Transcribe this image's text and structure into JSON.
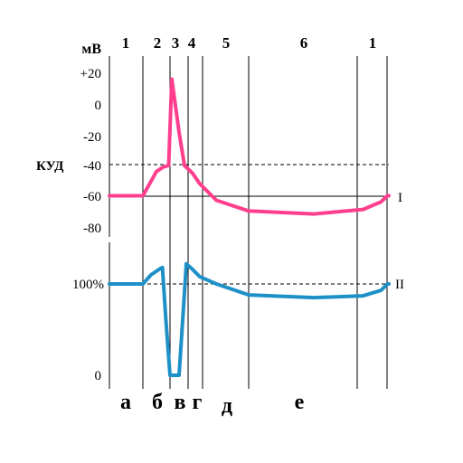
{
  "phase_numbers": [
    "1",
    "2",
    "3",
    "4",
    "5",
    "6",
    "1"
  ],
  "unit": "мВ",
  "potential_ticks": [
    "+20",
    "0",
    "-20",
    "-40",
    "-60",
    "-80"
  ],
  "threshold_label": "КУД",
  "excitability_ticks": [
    "100%",
    "0"
  ],
  "curve_labels": [
    "I",
    "II"
  ],
  "phase_letters": [
    "а",
    "б",
    "в",
    "г",
    "д",
    "е"
  ],
  "colors": {
    "curve_I": "#ff3f8e",
    "curve_II": "#1e90c8",
    "lines": "#000000"
  },
  "curve_I_potential_mV": [
    [
      0,
      -60
    ],
    [
      1,
      -60
    ],
    [
      1.25,
      -52
    ],
    [
      1.5,
      -44
    ],
    [
      1.75,
      -41
    ],
    [
      1.95,
      -40
    ],
    [
      2.1,
      17
    ],
    [
      2.5,
      -18
    ],
    [
      2.8,
      -40
    ],
    [
      3.3,
      -45
    ],
    [
      3.8,
      -52
    ],
    [
      4.3,
      -63
    ],
    [
      5.0,
      -70
    ],
    [
      5.6,
      -72
    ],
    [
      6.2,
      -69
    ],
    [
      6.8,
      -64
    ],
    [
      7.2,
      -60
    ],
    [
      8.0,
      -60
    ]
  ],
  "curve_II_excitability_pct": [
    [
      0,
      100
    ],
    [
      1,
      100
    ],
    [
      1.3,
      110
    ],
    [
      1.6,
      116
    ],
    [
      1.72,
      118
    ],
    [
      1.85,
      60
    ],
    [
      2.0,
      0
    ],
    [
      2.5,
      0
    ],
    [
      2.7,
      60
    ],
    [
      2.9,
      122
    ],
    [
      3.3,
      116
    ],
    [
      3.8,
      108
    ],
    [
      4.3,
      100
    ],
    [
      5.0,
      88
    ],
    [
      5.6,
      85
    ],
    [
      6.2,
      87
    ],
    [
      6.8,
      93
    ],
    [
      7.2,
      100
    ],
    [
      8.0,
      100
    ]
  ]
}
